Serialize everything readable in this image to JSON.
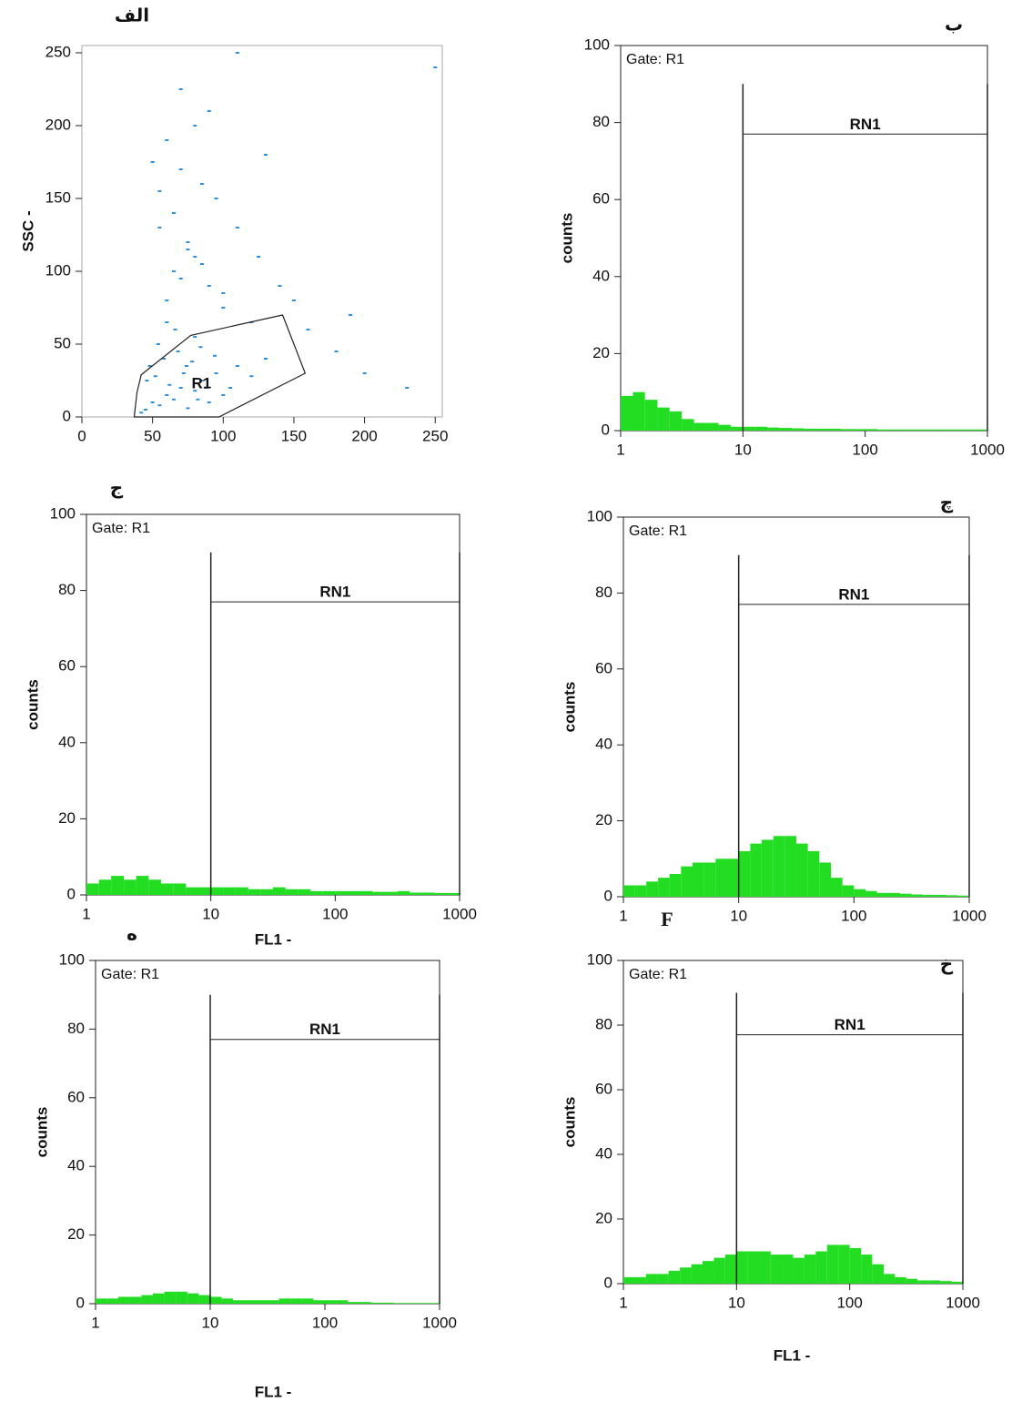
{
  "chart_data": [
    {
      "type": "scatter",
      "panel_label": "الف",
      "ylabel": "SSC -",
      "color": "#2f8fd8",
      "x": [
        45,
        50,
        55,
        60,
        65,
        70,
        75,
        80,
        85,
        90,
        95,
        100,
        48,
        52,
        58,
        62,
        68,
        72,
        78,
        82,
        88,
        42,
        46,
        54,
        66,
        74,
        84,
        94,
        105,
        110,
        120,
        130,
        60,
        70,
        80,
        90,
        100,
        55,
        65,
        75,
        85,
        50,
        60,
        70,
        80,
        95,
        110,
        125,
        140,
        160,
        180,
        200,
        230,
        250,
        70,
        90,
        110,
        130,
        60,
        80,
        150,
        190,
        65,
        75,
        85,
        100,
        55,
        120
      ],
      "y": [
        5,
        10,
        8,
        15,
        12,
        20,
        6,
        18,
        25,
        10,
        30,
        15,
        35,
        28,
        40,
        22,
        45,
        30,
        38,
        12,
        20,
        3,
        25,
        50,
        60,
        35,
        48,
        42,
        20,
        35,
        28,
        40,
        80,
        95,
        110,
        90,
        75,
        130,
        140,
        120,
        160,
        175,
        190,
        170,
        200,
        150,
        130,
        110,
        90,
        60,
        45,
        30,
        20,
        240,
        225,
        210,
        250,
        180,
        65,
        55,
        80,
        70,
        100,
        115,
        105,
        85,
        155,
        65
      ],
      "gate": {
        "label": "R1",
        "x": [
          37,
          39,
          42,
          77,
          142,
          158,
          97
        ],
        "y": [
          0,
          17,
          29,
          56,
          70,
          30,
          0
        ]
      },
      "xlim": [
        0,
        255
      ],
      "ylim": [
        0,
        255
      ],
      "xticks": [
        0,
        50,
        100,
        150,
        200,
        250
      ],
      "yticks": [
        0,
        50,
        100,
        150,
        200,
        250
      ]
    },
    {
      "type": "histogram",
      "panel_label": "ب",
      "annotation": "Gate: R1",
      "ylabel": "counts",
      "color": "#22dd22",
      "xscale": "log",
      "marker": {
        "label": "RN1",
        "range": [
          10,
          1000
        ],
        "level": 77
      },
      "bins": [
        1,
        1.26,
        1.58,
        2,
        2.51,
        3.16,
        3.98,
        5.01,
        6.31,
        7.94,
        10,
        12.6,
        15.8,
        20,
        25.1,
        31.6,
        39.8,
        50.1,
        63.1,
        79.4,
        100,
        126,
        158,
        200,
        251,
        316,
        398,
        501,
        631,
        794,
        1000
      ],
      "values": [
        9,
        10,
        8,
        6,
        5,
        3,
        2,
        2,
        1.5,
        1,
        1,
        1,
        0.8,
        0.7,
        0.6,
        0.5,
        0.5,
        0.5,
        0.4,
        0.4,
        0.4,
        0.3,
        0.3,
        0.3,
        0.3,
        0.3,
        0.3,
        0.3,
        0.3,
        0.3
      ],
      "xlim": [
        1,
        1000
      ],
      "ylim": [
        0,
        100
      ],
      "xticks": [
        1,
        10,
        100,
        1000
      ],
      "yticks": [
        0,
        20,
        40,
        60,
        80,
        100
      ]
    },
    {
      "type": "histogram",
      "panel_label": "ج",
      "annotation": "Gate: R1",
      "ylabel": "counts",
      "xlabel": "FL1 -",
      "color": "#22dd22",
      "xscale": "log",
      "marker": {
        "label": "RN1",
        "range": [
          10,
          1000
        ],
        "level": 77
      },
      "bins": [
        1,
        1.26,
        1.58,
        2,
        2.51,
        3.16,
        3.98,
        5.01,
        6.31,
        7.94,
        10,
        12.6,
        15.8,
        20,
        25.1,
        31.6,
        39.8,
        50.1,
        63.1,
        79.4,
        100,
        126,
        158,
        200,
        251,
        316,
        398,
        501,
        631,
        794,
        1000
      ],
      "values": [
        3,
        4,
        5,
        4,
        5,
        4,
        3,
        3,
        2,
        2,
        2,
        2,
        2,
        1.5,
        1.5,
        2,
        1.5,
        1.5,
        1,
        1,
        1,
        1,
        1,
        0.8,
        0.8,
        1,
        0.6,
        0.6,
        0.5,
        0.5
      ],
      "xlim": [
        1,
        1000
      ],
      "ylim": [
        0,
        100
      ],
      "xticks": [
        1,
        10,
        100,
        1000
      ],
      "yticks": [
        0,
        20,
        40,
        60,
        80,
        100
      ]
    },
    {
      "type": "histogram",
      "panel_label": "چ",
      "annotation": "Gate: R1",
      "ylabel": "counts",
      "xlabel": "F",
      "color": "#22dd22",
      "xscale": "log",
      "marker": {
        "label": "RN1",
        "range": [
          10,
          1000
        ],
        "level": 77
      },
      "bins": [
        1,
        1.26,
        1.58,
        2,
        2.51,
        3.16,
        3.98,
        5.01,
        6.31,
        7.94,
        10,
        12.6,
        15.8,
        20,
        25.1,
        31.6,
        39.8,
        50.1,
        63.1,
        79.4,
        100,
        126,
        158,
        200,
        251,
        316,
        398,
        501,
        631,
        794,
        1000
      ],
      "values": [
        3,
        3,
        4,
        5,
        6,
        8,
        9,
        9,
        10,
        10,
        12,
        14,
        15,
        16,
        16,
        14,
        12,
        9,
        5,
        3,
        2,
        1.5,
        1,
        1,
        0.8,
        0.6,
        0.5,
        0.5,
        0.4,
        0.3
      ],
      "xlim": [
        1,
        1000
      ],
      "ylim": [
        0,
        100
      ],
      "xticks": [
        1,
        10,
        100,
        1000
      ],
      "yticks": [
        0,
        20,
        40,
        60,
        80,
        100
      ]
    },
    {
      "type": "histogram",
      "panel_label": "ه",
      "annotation": "Gate: R1",
      "ylabel": "counts",
      "xlabel": "FL1 -",
      "color": "#22dd22",
      "xscale": "log",
      "marker": {
        "label": "RN1",
        "range": [
          10,
          1000
        ],
        "level": 77
      },
      "bins": [
        1,
        1.26,
        1.58,
        2,
        2.51,
        3.16,
        3.98,
        5.01,
        6.31,
        7.94,
        10,
        12.6,
        15.8,
        20,
        25.1,
        31.6,
        39.8,
        50.1,
        63.1,
        79.4,
        100,
        126,
        158,
        200,
        251,
        316,
        398,
        501,
        631,
        794,
        1000
      ],
      "values": [
        1.5,
        1.5,
        2,
        2,
        2.5,
        3,
        3.5,
        3.5,
        3,
        2.5,
        2,
        1.5,
        1,
        1,
        1,
        1,
        1.5,
        1.5,
        1.5,
        1,
        1,
        1,
        0.5,
        0.5,
        0.3,
        0.3,
        0.2,
        0.2,
        0.2,
        0.2
      ],
      "xlim": [
        1,
        1000
      ],
      "ylim": [
        0,
        100
      ],
      "xticks": [
        1,
        10,
        100,
        1000
      ],
      "yticks": [
        0,
        20,
        40,
        60,
        80,
        100
      ]
    },
    {
      "type": "histogram",
      "panel_label": "خ",
      "annotation": "Gate: R1",
      "ylabel": "counts",
      "xlabel": "FL1 -",
      "color": "#22dd22",
      "xscale": "log",
      "marker": {
        "label": "RN1",
        "range": [
          10,
          1000
        ],
        "level": 77
      },
      "bins": [
        1,
        1.26,
        1.58,
        2,
        2.51,
        3.16,
        3.98,
        5.01,
        6.31,
        7.94,
        10,
        12.6,
        15.8,
        20,
        25.1,
        31.6,
        39.8,
        50.1,
        63.1,
        79.4,
        100,
        126,
        158,
        200,
        251,
        316,
        398,
        501,
        631,
        794,
        1000
      ],
      "values": [
        2,
        2,
        3,
        3,
        4,
        5,
        6,
        7,
        8,
        9,
        10,
        10,
        10,
        9,
        9,
        8,
        9,
        10,
        12,
        12,
        11,
        9,
        6,
        3,
        2,
        1.5,
        1,
        1,
        0.8,
        0.6
      ],
      "xlim": [
        1,
        1000
      ],
      "ylim": [
        0,
        100
      ],
      "xticks": [
        1,
        10,
        100,
        1000
      ],
      "yticks": [
        0,
        20,
        40,
        60,
        80,
        100
      ]
    }
  ]
}
